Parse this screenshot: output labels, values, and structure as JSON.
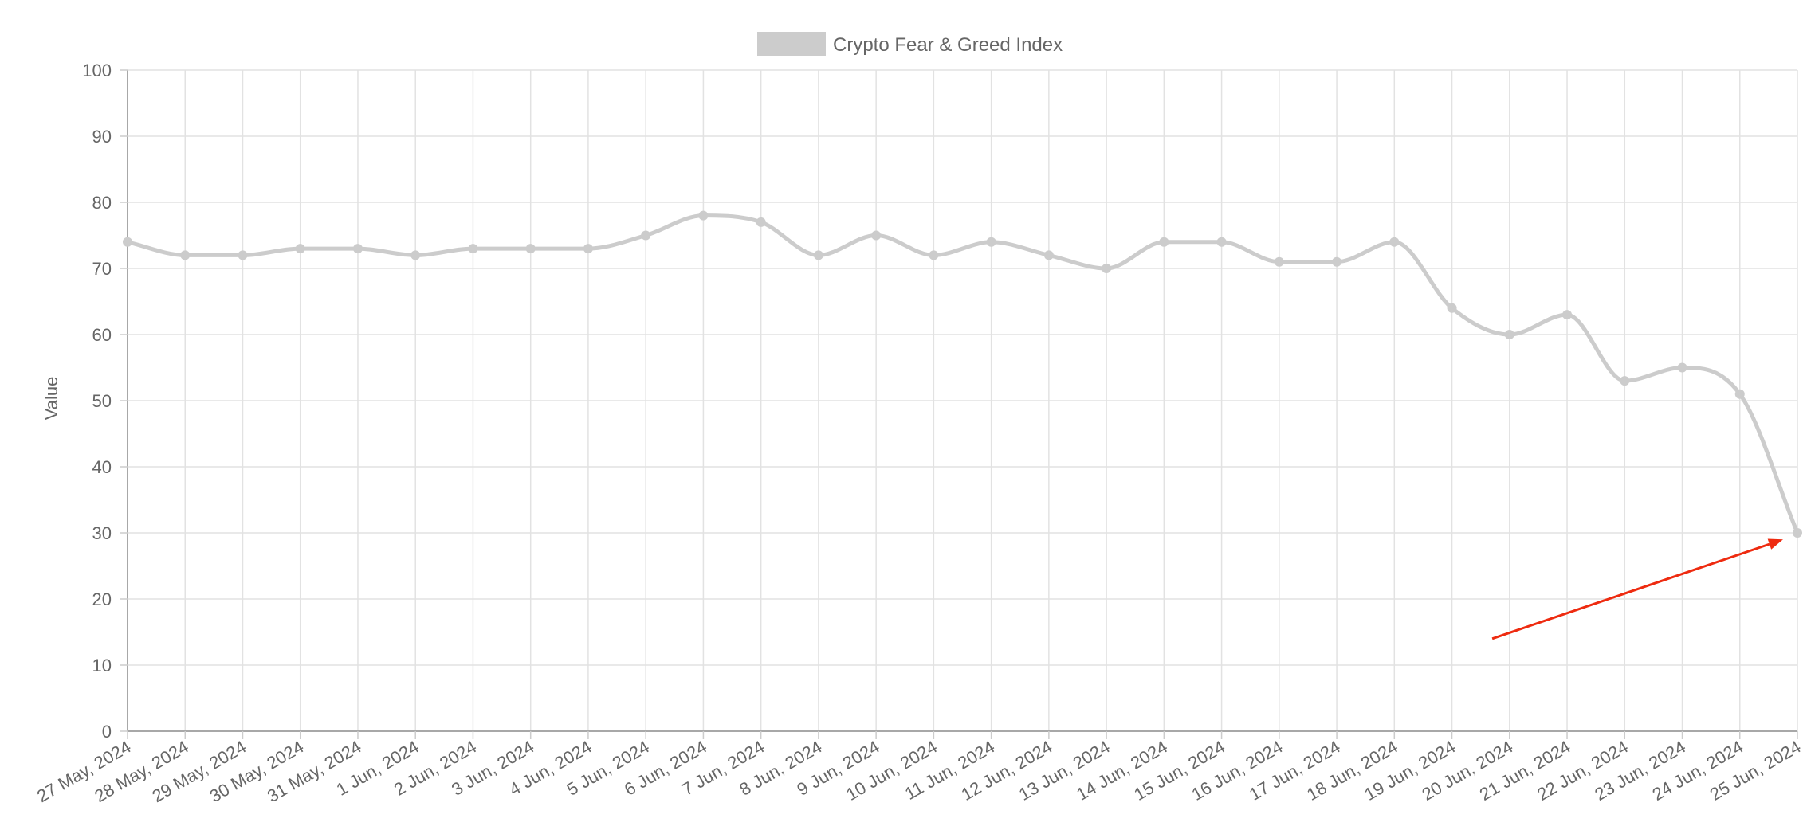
{
  "chart_data": {
    "type": "line",
    "title": "",
    "xlabel": "",
    "ylabel": "Value",
    "ylim": [
      0,
      100
    ],
    "yticks": [
      0,
      10,
      20,
      30,
      40,
      50,
      60,
      70,
      80,
      90,
      100
    ],
    "grid": true,
    "legend_position": "top-center",
    "categories": [
      "27 May, 2024",
      "28 May, 2024",
      "29 May, 2024",
      "30 May, 2024",
      "31 May, 2024",
      "1 Jun, 2024",
      "2 Jun, 2024",
      "3 Jun, 2024",
      "4 Jun, 2024",
      "5 Jun, 2024",
      "6 Jun, 2024",
      "7 Jun, 2024",
      "8 Jun, 2024",
      "9 Jun, 2024",
      "10 Jun, 2024",
      "11 Jun, 2024",
      "12 Jun, 2024",
      "13 Jun, 2024",
      "14 Jun, 2024",
      "15 Jun, 2024",
      "16 Jun, 2024",
      "17 Jun, 2024",
      "18 Jun, 2024",
      "19 Jun, 2024",
      "20 Jun, 2024",
      "21 Jun, 2024",
      "22 Jun, 2024",
      "23 Jun, 2024",
      "24 Jun, 2024",
      "25 Jun, 2024"
    ],
    "series": [
      {
        "name": "Crypto Fear & Greed Index",
        "color": "#cccccc",
        "values": [
          74,
          72,
          72,
          73,
          73,
          72,
          73,
          73,
          73,
          75,
          78,
          77,
          72,
          75,
          72,
          74,
          72,
          70,
          74,
          74,
          71,
          71,
          74,
          64,
          60,
          63,
          53,
          55,
          51,
          30
        ]
      }
    ],
    "annotation": {
      "type": "arrow",
      "color": "#ee2b10",
      "from": {
        "x": "20 Jun, 2024",
        "x_offset": -0.3,
        "y": 14
      },
      "to": {
        "x": "25 Jun, 2024",
        "x_offset": -0.25,
        "y": 29
      }
    }
  }
}
